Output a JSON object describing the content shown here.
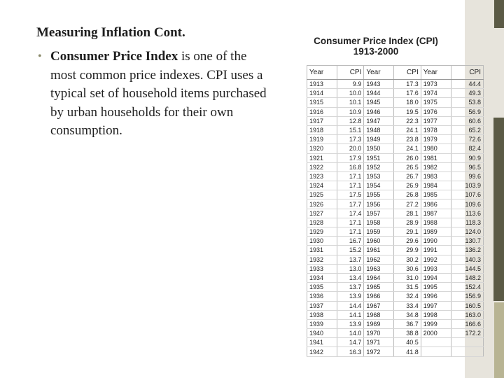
{
  "slide": {
    "title": "Measuring Inflation Cont.",
    "bullet_bold": "Consumer Price Index",
    "bullet_rest": " is one of the most common price indexes. CPI uses a typical set of household items purchased by urban households for their own consumption."
  },
  "cpi_table": {
    "title_line1": "Consumer Price Index (CPI)",
    "title_line2": "1913-2000",
    "headers": [
      "Year",
      "CPI",
      "Year",
      "CPI",
      "Year",
      "CPI"
    ],
    "rows": [
      [
        "1913",
        "9.9",
        "1943",
        "17.3",
        "1973",
        "44.4"
      ],
      [
        "1914",
        "10.0",
        "1944",
        "17.6",
        "1974",
        "49.3"
      ],
      [
        "1915",
        "10.1",
        "1945",
        "18.0",
        "1975",
        "53.8"
      ],
      [
        "1916",
        "10.9",
        "1946",
        "19.5",
        "1976",
        "56.9"
      ],
      [
        "1917",
        "12.8",
        "1947",
        "22.3",
        "1977",
        "60.6"
      ],
      [
        "1918",
        "15.1",
        "1948",
        "24.1",
        "1978",
        "65.2"
      ],
      [
        "1919",
        "17.3",
        "1949",
        "23.8",
        "1979",
        "72.6"
      ],
      [
        "1920",
        "20.0",
        "1950",
        "24.1",
        "1980",
        "82.4"
      ],
      [
        "1921",
        "17.9",
        "1951",
        "26.0",
        "1981",
        "90.9"
      ],
      [
        "1922",
        "16.8",
        "1952",
        "26.5",
        "1982",
        "96.5"
      ],
      [
        "1923",
        "17.1",
        "1953",
        "26.7",
        "1983",
        "99.6"
      ],
      [
        "1924",
        "17.1",
        "1954",
        "26.9",
        "1984",
        "103.9"
      ],
      [
        "1925",
        "17.5",
        "1955",
        "26.8",
        "1985",
        "107.6"
      ],
      [
        "1926",
        "17.7",
        "1956",
        "27.2",
        "1986",
        "109.6"
      ],
      [
        "1927",
        "17.4",
        "1957",
        "28.1",
        "1987",
        "113.6"
      ],
      [
        "1928",
        "17.1",
        "1958",
        "28.9",
        "1988",
        "118.3"
      ],
      [
        "1929",
        "17.1",
        "1959",
        "29.1",
        "1989",
        "124.0"
      ],
      [
        "1930",
        "16.7",
        "1960",
        "29.6",
        "1990",
        "130.7"
      ],
      [
        "1931",
        "15.2",
        "1961",
        "29.9",
        "1991",
        "136.2"
      ],
      [
        "1932",
        "13.7",
        "1962",
        "30.2",
        "1992",
        "140.3"
      ],
      [
        "1933",
        "13.0",
        "1963",
        "30.6",
        "1993",
        "144.5"
      ],
      [
        "1934",
        "13.4",
        "1964",
        "31.0",
        "1994",
        "148.2"
      ],
      [
        "1935",
        "13.7",
        "1965",
        "31.5",
        "1995",
        "152.4"
      ],
      [
        "1936",
        "13.9",
        "1966",
        "32.4",
        "1996",
        "156.9"
      ],
      [
        "1937",
        "14.4",
        "1967",
        "33.4",
        "1997",
        "160.5"
      ],
      [
        "1938",
        "14.1",
        "1968",
        "34.8",
        "1998",
        "163.0"
      ],
      [
        "1939",
        "13.9",
        "1969",
        "36.7",
        "1999",
        "166.6"
      ],
      [
        "1940",
        "14.0",
        "1970",
        "38.8",
        "2000",
        "172.2"
      ],
      [
        "1941",
        "14.7",
        "1971",
        "40.5",
        "",
        ""
      ],
      [
        "1942",
        "16.3",
        "1972",
        "41.8",
        "",
        ""
      ]
    ]
  }
}
